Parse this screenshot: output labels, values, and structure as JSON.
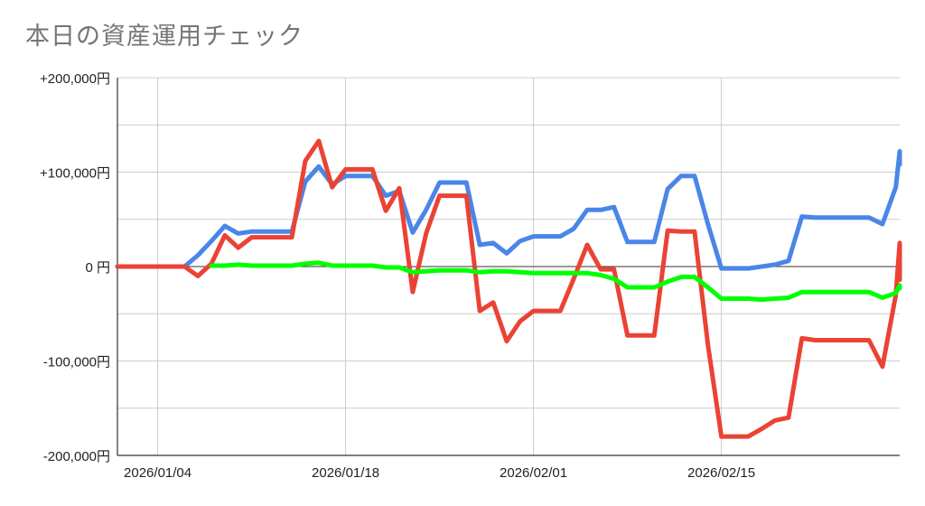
{
  "chart_data": {
    "type": "line",
    "title": "本日の資産運用チェック",
    "x_start": "2026-01-01",
    "x_end": "2026-03-01",
    "x_ticks": [
      {
        "date": "2026-01-04",
        "label": "2026/01/04"
      },
      {
        "date": "2026-01-18",
        "label": "2026/01/18"
      },
      {
        "date": "2026-02-01",
        "label": "2026/02/01"
      },
      {
        "date": "2026-02-15",
        "label": "2026/02/15"
      }
    ],
    "ylim": [
      -200000,
      200000
    ],
    "y_ticks": [
      {
        "value": 200000,
        "label": "+200,000円"
      },
      {
        "value": 100000,
        "label": "+100,000円"
      },
      {
        "value": 0,
        "label": "0 円"
      },
      {
        "value": -100000,
        "label": "-100,000円"
      },
      {
        "value": -200000,
        "label": "-200,000円"
      }
    ],
    "grid": true,
    "colors": {
      "blue": "#4a86e8",
      "red": "#ea4335",
      "green": "#00ff00",
      "grid": "#cccccc",
      "axis": "#333333"
    },
    "series": [
      {
        "color": "#4a86e8",
        "points": [
          [
            "2026-01-01",
            0
          ],
          [
            "2026-01-02",
            0
          ],
          [
            "2026-01-03",
            0
          ],
          [
            "2026-01-04",
            0
          ],
          [
            "2026-01-05",
            0
          ],
          [
            "2026-01-06",
            0
          ],
          [
            "2026-01-07",
            12000
          ],
          [
            "2026-01-08",
            27000
          ],
          [
            "2026-01-09",
            43000
          ],
          [
            "2026-01-10",
            35000
          ],
          [
            "2026-01-11",
            37000
          ],
          [
            "2026-01-12",
            37000
          ],
          [
            "2026-01-13",
            37000
          ],
          [
            "2026-01-14",
            37000
          ],
          [
            "2026-01-15",
            90000
          ],
          [
            "2026-01-16",
            106000
          ],
          [
            "2026-01-17",
            87000
          ],
          [
            "2026-01-18",
            96000
          ],
          [
            "2026-01-19",
            96000
          ],
          [
            "2026-01-20",
            96000
          ],
          [
            "2026-01-21",
            75000
          ],
          [
            "2026-01-22",
            80000
          ],
          [
            "2026-01-23",
            36000
          ],
          [
            "2026-01-24",
            60000
          ],
          [
            "2026-01-25",
            89000
          ],
          [
            "2026-01-26",
            89000
          ],
          [
            "2026-01-27",
            89000
          ],
          [
            "2026-01-28",
            23000
          ],
          [
            "2026-01-29",
            25000
          ],
          [
            "2026-01-30",
            14000
          ],
          [
            "2026-01-31",
            27000
          ],
          [
            "2026-02-01",
            32000
          ],
          [
            "2026-02-02",
            32000
          ],
          [
            "2026-02-03",
            32000
          ],
          [
            "2026-02-04",
            40000
          ],
          [
            "2026-02-05",
            60000
          ],
          [
            "2026-02-06",
            60000
          ],
          [
            "2026-02-07",
            63000
          ],
          [
            "2026-02-08",
            26000
          ],
          [
            "2026-02-09",
            26000
          ],
          [
            "2026-02-10",
            26000
          ],
          [
            "2026-02-11",
            82000
          ],
          [
            "2026-02-12",
            96000
          ],
          [
            "2026-02-13",
            96000
          ],
          [
            "2026-02-14",
            45000
          ],
          [
            "2026-02-15",
            -2000
          ],
          [
            "2026-02-16",
            -2000
          ],
          [
            "2026-02-17",
            -2000
          ],
          [
            "2026-02-18",
            0
          ],
          [
            "2026-02-19",
            2000
          ],
          [
            "2026-02-20",
            6000
          ],
          [
            "2026-02-21",
            53000
          ],
          [
            "2026-02-22",
            52000
          ],
          [
            "2026-02-23",
            52000
          ],
          [
            "2026-02-24",
            52000
          ],
          [
            "2026-02-25",
            52000
          ],
          [
            "2026-02-26",
            52000
          ],
          [
            "2026-02-27",
            45000
          ],
          [
            "2026-02-28",
            84000
          ],
          [
            "2026-03-01",
            122000
          ],
          [
            "2026-03-02",
            108000
          ]
        ]
      },
      {
        "color": "#ea4335",
        "points": [
          [
            "2026-01-01",
            0
          ],
          [
            "2026-01-02",
            0
          ],
          [
            "2026-01-03",
            0
          ],
          [
            "2026-01-04",
            0
          ],
          [
            "2026-01-05",
            0
          ],
          [
            "2026-01-06",
            0
          ],
          [
            "2026-01-07",
            -10000
          ],
          [
            "2026-01-08",
            3000
          ],
          [
            "2026-01-09",
            33000
          ],
          [
            "2026-01-10",
            20000
          ],
          [
            "2026-01-11",
            31000
          ],
          [
            "2026-01-12",
            31000
          ],
          [
            "2026-01-13",
            31000
          ],
          [
            "2026-01-14",
            31000
          ],
          [
            "2026-01-15",
            112000
          ],
          [
            "2026-01-16",
            133000
          ],
          [
            "2026-01-17",
            84000
          ],
          [
            "2026-01-18",
            103000
          ],
          [
            "2026-01-19",
            103000
          ],
          [
            "2026-01-20",
            103000
          ],
          [
            "2026-01-21",
            59000
          ],
          [
            "2026-01-22",
            83000
          ],
          [
            "2026-01-23",
            -27000
          ],
          [
            "2026-01-24",
            35000
          ],
          [
            "2026-01-25",
            75000
          ],
          [
            "2026-01-26",
            75000
          ],
          [
            "2026-01-27",
            75000
          ],
          [
            "2026-01-28",
            -47000
          ],
          [
            "2026-01-29",
            -38000
          ],
          [
            "2026-01-30",
            -79000
          ],
          [
            "2026-01-31",
            -58000
          ],
          [
            "2026-02-01",
            -47000
          ],
          [
            "2026-02-02",
            -47000
          ],
          [
            "2026-02-03",
            -47000
          ],
          [
            "2026-02-04",
            -13000
          ],
          [
            "2026-02-05",
            23000
          ],
          [
            "2026-02-06",
            -3000
          ],
          [
            "2026-02-07",
            -3000
          ],
          [
            "2026-02-08",
            -73000
          ],
          [
            "2026-02-09",
            -73000
          ],
          [
            "2026-02-10",
            -73000
          ],
          [
            "2026-02-11",
            38000
          ],
          [
            "2026-02-12",
            37000
          ],
          [
            "2026-02-13",
            37000
          ],
          [
            "2026-02-14",
            -83000
          ],
          [
            "2026-02-15",
            -180000
          ],
          [
            "2026-02-16",
            -180000
          ],
          [
            "2026-02-17",
            -180000
          ],
          [
            "2026-02-18",
            -172000
          ],
          [
            "2026-02-19",
            -163000
          ],
          [
            "2026-02-20",
            -160000
          ],
          [
            "2026-02-21",
            -76000
          ],
          [
            "2026-02-22",
            -78000
          ],
          [
            "2026-02-23",
            -78000
          ],
          [
            "2026-02-24",
            -78000
          ],
          [
            "2026-02-25",
            -78000
          ],
          [
            "2026-02-26",
            -78000
          ],
          [
            "2026-02-27",
            -106000
          ],
          [
            "2026-02-28",
            -30000
          ],
          [
            "2026-03-01",
            25000
          ],
          [
            "2026-03-02",
            -14000
          ]
        ]
      },
      {
        "color": "#00ff00",
        "points": [
          [
            "2026-01-08",
            1000
          ],
          [
            "2026-01-09",
            1000
          ],
          [
            "2026-01-10",
            2000
          ],
          [
            "2026-01-11",
            1000
          ],
          [
            "2026-01-12",
            1000
          ],
          [
            "2026-01-13",
            1000
          ],
          [
            "2026-01-14",
            1000
          ],
          [
            "2026-01-15",
            3000
          ],
          [
            "2026-01-16",
            4000
          ],
          [
            "2026-01-17",
            1000
          ],
          [
            "2026-01-18",
            1000
          ],
          [
            "2026-01-19",
            1000
          ],
          [
            "2026-01-20",
            1000
          ],
          [
            "2026-01-21",
            -1000
          ],
          [
            "2026-01-22",
            -1000
          ],
          [
            "2026-01-23",
            -6000
          ],
          [
            "2026-01-24",
            -5000
          ],
          [
            "2026-01-25",
            -4000
          ],
          [
            "2026-01-26",
            -4000
          ],
          [
            "2026-01-27",
            -4000
          ],
          [
            "2026-01-28",
            -6000
          ],
          [
            "2026-01-29",
            -5000
          ],
          [
            "2026-01-30",
            -5000
          ],
          [
            "2026-01-31",
            -6000
          ],
          [
            "2026-02-01",
            -7000
          ],
          [
            "2026-02-02",
            -7000
          ],
          [
            "2026-02-03",
            -7000
          ],
          [
            "2026-02-04",
            -7000
          ],
          [
            "2026-02-05",
            -7000
          ],
          [
            "2026-02-06",
            -9000
          ],
          [
            "2026-02-07",
            -13000
          ],
          [
            "2026-02-08",
            -22000
          ],
          [
            "2026-02-09",
            -22000
          ],
          [
            "2026-02-10",
            -22000
          ],
          [
            "2026-02-11",
            -16000
          ],
          [
            "2026-02-12",
            -11000
          ],
          [
            "2026-02-13",
            -11000
          ],
          [
            "2026-02-14",
            -22000
          ],
          [
            "2026-02-15",
            -34000
          ],
          [
            "2026-02-16",
            -34000
          ],
          [
            "2026-02-17",
            -34000
          ],
          [
            "2026-02-18",
            -35000
          ],
          [
            "2026-02-19",
            -34000
          ],
          [
            "2026-02-20",
            -33000
          ],
          [
            "2026-02-21",
            -27000
          ],
          [
            "2026-02-22",
            -27000
          ],
          [
            "2026-02-23",
            -27000
          ],
          [
            "2026-02-24",
            -27000
          ],
          [
            "2026-02-25",
            -27000
          ],
          [
            "2026-02-26",
            -27000
          ],
          [
            "2026-02-27",
            -33000
          ],
          [
            "2026-02-28",
            -28000
          ],
          [
            "2026-03-01",
            -20000
          ],
          [
            "2026-03-02",
            -23000
          ]
        ]
      }
    ]
  }
}
